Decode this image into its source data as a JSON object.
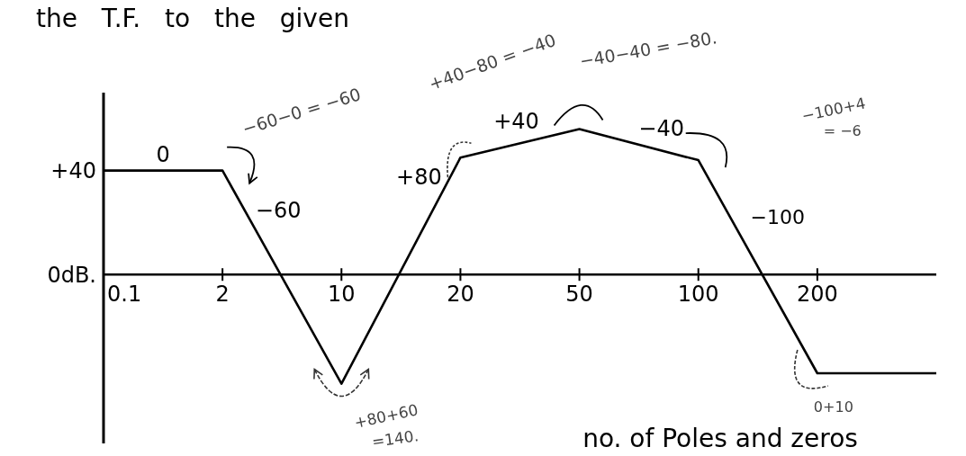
{
  "chart_data": {
    "type": "line",
    "title": "the T.F. to the given",
    "categories": [
      "0.1",
      "2",
      "10",
      "20",
      "50",
      "100",
      "200",
      null
    ],
    "values": [
      40,
      40,
      -42,
      45,
      56,
      44,
      -38,
      -38
    ],
    "color": "#000000",
    "ylim": [
      -65,
      70
    ],
    "yticks": [
      {
        "value": 40,
        "label": "+40"
      },
      {
        "value": 0,
        "label": "0dB."
      }
    ],
    "marker": "none",
    "line_style": "solid",
    "annotations": [
      "0",
      "−60",
      "+80",
      "+40",
      "−40",
      "−100",
      "−60−0 = −60",
      "+40−80 = −40",
      "−40−40 = −80.",
      "−100+4",
      "= −6",
      "+80+60",
      "=140.",
      "0+10",
      "no. of Poles and zeros"
    ]
  }
}
